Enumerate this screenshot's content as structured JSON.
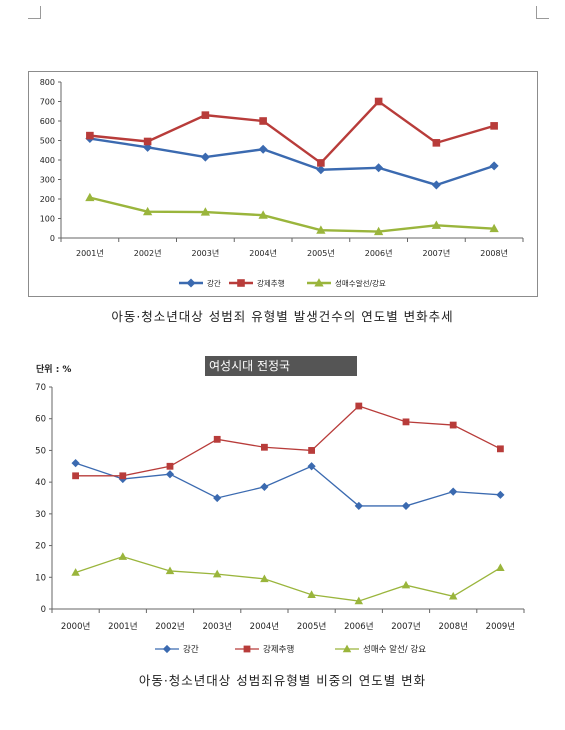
{
  "chart_data": [
    {
      "type": "line",
      "categories": [
        "2001년",
        "2002년",
        "2003년",
        "2004년",
        "2005년",
        "2006년",
        "2007년",
        "2008년"
      ],
      "ylim": [
        0,
        800
      ],
      "yticks": [
        0,
        100,
        200,
        300,
        400,
        500,
        600,
        700,
        800
      ],
      "series": [
        {
          "name": "강간",
          "color": "#3b6ab0",
          "marker": "diamond",
          "values": [
            510,
            465,
            415,
            455,
            350,
            360,
            272,
            370
          ]
        },
        {
          "name": "강제추행",
          "color": "#b83c3a",
          "marker": "square",
          "values": [
            525,
            495,
            630,
            600,
            385,
            700,
            488,
            575
          ]
        },
        {
          "name": "성매수알선/강요",
          "color": "#9ab53c",
          "marker": "triangle",
          "values": [
            207,
            135,
            133,
            117,
            40,
            33,
            65,
            48
          ]
        }
      ],
      "caption": "아동·청소년대상 성범죄 유형별 발생건수의 연도별 변화추세",
      "legend_position": "bottom"
    },
    {
      "type": "line",
      "categories": [
        "2000년",
        "2001년",
        "2002년",
        "2003년",
        "2004년",
        "2005년",
        "2006년",
        "2007년",
        "2008년",
        "2009년"
      ],
      "ylim": [
        0,
        70
      ],
      "yticks": [
        0,
        10,
        20,
        30,
        40,
        50,
        60,
        70
      ],
      "unit_label": "단위 : %",
      "series": [
        {
          "name": "강간",
          "color": "#3b6ab0",
          "marker": "diamond",
          "values": [
            46,
            41,
            42.5,
            35,
            38.5,
            45,
            32.5,
            32.5,
            37,
            36
          ]
        },
        {
          "name": "강제추행",
          "color": "#b83c3a",
          "marker": "square",
          "values": [
            42,
            42,
            45,
            53.5,
            51,
            50,
            64,
            59,
            58,
            50.5
          ]
        },
        {
          "name": "성매수 알선/ 강요",
          "color": "#9ab53c",
          "marker": "triangle",
          "values": [
            11.5,
            16.5,
            12,
            11,
            9.5,
            4.5,
            2.5,
            7.5,
            4,
            13
          ]
        }
      ],
      "caption": "아동·청소년대상 성범죄유형별 비중의 연도별 변화",
      "legend_position": "bottom"
    }
  ],
  "watermark_text": "여성시대 전정국"
}
